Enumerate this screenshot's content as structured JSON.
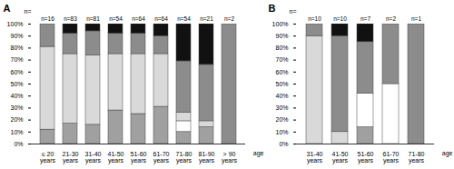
{
  "chart_data": [
    {
      "type": "bar",
      "title": "A",
      "stacked": true,
      "x_label": "age",
      "y_label": "n=",
      "categories": [
        "≤ 20\nyears",
        "21-30\nyears",
        "31-40\nyears",
        "41-50\nyears",
        "51-60\nyears",
        "61-70\nyears",
        "71-80\nyears",
        "81-90\nyears",
        "> 90\nyears"
      ],
      "bar_labels": [
        "n=16",
        "n=83",
        "n=81",
        "n=54",
        "n=64",
        "n=64",
        "n=54",
        "n=21",
        "n=2"
      ],
      "series": [
        {
          "color": "#a0a0a0",
          "values": [
            12,
            17,
            16,
            28,
            25,
            31,
            10,
            14,
            0
          ]
        },
        {
          "color": "#ffffff",
          "values": [
            0,
            0,
            0,
            0,
            0,
            0,
            9,
            0,
            0
          ]
        },
        {
          "color": "#d9d9d9",
          "values": [
            69,
            58,
            58,
            47,
            50,
            44,
            7,
            5,
            0
          ]
        },
        {
          "color": "#8c8c8c",
          "values": [
            19,
            17,
            20,
            17,
            17,
            15,
            43,
            47,
            100
          ]
        },
        {
          "color": "#111111",
          "values": [
            0,
            8,
            6,
            8,
            8,
            10,
            31,
            34,
            0
          ]
        }
      ],
      "ylim": [
        0,
        100
      ],
      "yticks": [
        {
          "value": 0,
          "label": "0%"
        },
        {
          "value": 10,
          "label": "10%"
        },
        {
          "value": 20,
          "label": "20%"
        },
        {
          "value": 30,
          "label": "30%"
        },
        {
          "value": 40,
          "label": "40%"
        },
        {
          "value": 50,
          "label": "50%"
        },
        {
          "value": 60,
          "label": "60%"
        },
        {
          "value": 70,
          "label": "70%"
        },
        {
          "value": 80,
          "label": "80%"
        },
        {
          "value": 90,
          "label": "90%"
        },
        {
          "value": 100,
          "label": "100%"
        }
      ]
    },
    {
      "type": "bar",
      "title": "B",
      "stacked": true,
      "x_label": "age",
      "y_label": "n=",
      "categories": [
        "31-40\nyears",
        "41-50\nyears",
        "51-60\nyears",
        "61-70\nyears",
        "71-80\nyears"
      ],
      "bar_labels": [
        "n=10",
        "n=10",
        "n=7",
        "n=2",
        "n=1"
      ],
      "series": [
        {
          "color": "#a0a0a0",
          "values": [
            0,
            0,
            14,
            0,
            0
          ]
        },
        {
          "color": "#ffffff",
          "values": [
            0,
            0,
            28,
            50,
            0
          ]
        },
        {
          "color": "#d9d9d9",
          "values": [
            90,
            10,
            0,
            0,
            0
          ]
        },
        {
          "color": "#8c8c8c",
          "values": [
            10,
            80,
            43,
            50,
            100
          ]
        },
        {
          "color": "#111111",
          "values": [
            0,
            10,
            15,
            0,
            0
          ]
        }
      ],
      "ylim": [
        0,
        100
      ],
      "yticks": [
        {
          "value": 0,
          "label": "0%"
        },
        {
          "value": 10,
          "label": "10%"
        },
        {
          "value": 20,
          "label": "20%"
        },
        {
          "value": 30,
          "label": "30%"
        },
        {
          "value": 40,
          "label": "40%"
        },
        {
          "value": 50,
          "label": "50%"
        },
        {
          "value": 60,
          "label": "60%"
        },
        {
          "value": 70,
          "label": "70%"
        },
        {
          "value": 80,
          "label": "80%"
        },
        {
          "value": 90,
          "label": "90%"
        },
        {
          "value": 100,
          "label": "100%"
        }
      ]
    }
  ]
}
